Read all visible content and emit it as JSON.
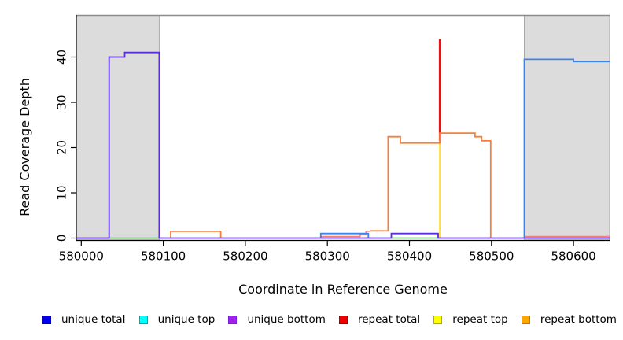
{
  "figure": {
    "y_axis_title": "Read Coverage Depth",
    "x_axis_title": "Coordinate in Reference Genome"
  },
  "legend": {
    "items": [
      {
        "label": "unique total",
        "color": "#0000ee",
        "border": "#0000b4"
      },
      {
        "label": "unique top",
        "color": "#00ffff",
        "border": "#00a8a8"
      },
      {
        "label": "unique bottom",
        "color": "#a020f0",
        "border": "#7d1ed6"
      },
      {
        "label": "repeat total",
        "color": "#ee0000",
        "border": "#a00000"
      },
      {
        "label": "repeat top",
        "color": "#ffff00",
        "border": "#c8a000"
      },
      {
        "label": "repeat bottom",
        "color": "#ffa500",
        "border": "#c87800"
      }
    ]
  },
  "chart_data": {
    "type": "line",
    "subtype": "step-coverage-plot",
    "title": "",
    "xlabel": "Coordinate in Reference Genome",
    "ylabel": "Read Coverage Depth",
    "xlim": [
      579994,
      580644
    ],
    "ylim": [
      0,
      49.3
    ],
    "x_ticks": [
      580000,
      580100,
      580200,
      580300,
      580400,
      580500,
      580600
    ],
    "y_ticks": [
      0,
      10,
      20,
      30,
      40
    ],
    "grid": false,
    "legend_position": "bottom",
    "top_border_color": "#8c8c8c",
    "axis_color": "#000000",
    "highlight_regions": [
      {
        "x0": 579994,
        "x1": 580095,
        "color": "#dcdcdc",
        "border": "#a9a9a9"
      },
      {
        "x0": 580540,
        "x1": 580644,
        "color": "#dcdcdc",
        "border": "#a9a9a9"
      }
    ],
    "series": [
      {
        "key": "unique-top-baseline",
        "name": "unique top (visible zero-depth segments, green)",
        "color": "#82c982",
        "width": 1.8,
        "segments": [
          [
            [
              580035,
              0
            ],
            [
              580095,
              0
            ]
          ],
          [
            [
              580378,
              0
            ],
            [
              580435,
              0
            ]
          ]
        ]
      },
      {
        "key": "repeat-top",
        "name": "repeat top (vertical at 580437)",
        "color": "#ffdf3e",
        "width": 2,
        "segments": [
          [
            [
              580437,
              0
            ],
            [
              580437,
              21
            ]
          ]
        ]
      },
      {
        "key": "repeat-total-baseline",
        "name": "repeat total (low-depth segments)",
        "color": "#f08080",
        "width": 1.4,
        "segments": [
          [
            [
              580292,
              0.35
            ],
            [
              580340,
              0.35
            ],
            [
              580340,
              0.8
            ],
            [
              580347,
              0.8
            ],
            [
              580347,
              1.5
            ],
            [
              580352,
              1.5
            ]
          ],
          [
            [
              580540,
              0.35
            ],
            [
              580644,
              0.35
            ]
          ]
        ]
      },
      {
        "key": "repeat-total-spike",
        "name": "repeat total (spike at 580437, depth 44)",
        "color": "#ee1111",
        "width": 2.4,
        "segments": [
          [
            [
              580437,
              21.5
            ],
            [
              580437,
              44
            ]
          ]
        ]
      },
      {
        "key": "repeat-bottom",
        "name": "repeat bottom",
        "color": "#f5803c",
        "width": 1.8,
        "segments": [
          [
            [
              580109,
              0
            ],
            [
              580109,
              1.5
            ],
            [
              580170,
              1.5
            ],
            [
              580170,
              0
            ]
          ],
          [
            [
              580352,
              1.6
            ],
            [
              580374,
              1.6
            ],
            [
              580374,
              22.4
            ],
            [
              580389,
              22.4
            ],
            [
              580389,
              21
            ],
            [
              580437,
              21
            ],
            [
              580437,
              23.2
            ],
            [
              580480,
              23.2
            ],
            [
              580480,
              22.4
            ],
            [
              580488,
              22.4
            ],
            [
              580488,
              21.5
            ],
            [
              580499,
              21.5
            ],
            [
              580499,
              0
            ]
          ]
        ]
      },
      {
        "key": "unique-total",
        "name": "unique total",
        "color": "#3d85ee",
        "width": 1.8,
        "segments": [
          [
            [
              580292,
              0
            ],
            [
              580292,
              1
            ],
            [
              580350,
              1
            ],
            [
              580350,
              0
            ]
          ],
          [
            [
              580540,
              0
            ],
            [
              580540,
              39.5
            ],
            [
              580600,
              39.5
            ],
            [
              580600,
              39
            ],
            [
              580644,
              39
            ]
          ]
        ]
      },
      {
        "key": "unique-bottom",
        "name": "unique bottom",
        "color": "#5b2ee0",
        "width": 1.8,
        "segments": [
          [
            [
              579994,
              0
            ],
            [
              580034,
              0
            ],
            [
              580034,
              40
            ],
            [
              580053,
              40
            ],
            [
              580053,
              41
            ],
            [
              580095,
              41
            ],
            [
              580095,
              0
            ],
            [
              580378,
              0
            ],
            [
              580378,
              1
            ],
            [
              580435,
              1
            ],
            [
              580435,
              0
            ],
            [
              580644,
              0
            ]
          ]
        ]
      }
    ]
  }
}
